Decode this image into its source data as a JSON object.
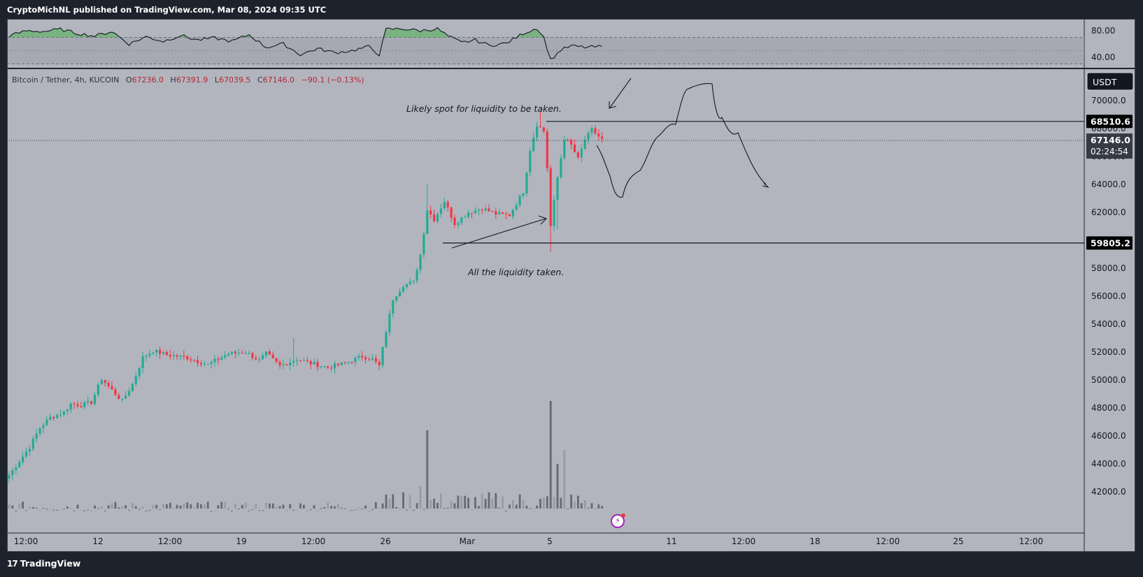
{
  "header": {
    "published_text": "CryptoMichNL published on TradingView.com, Mar 08, 2024 09:35 UTC"
  },
  "footer": {
    "logo_mark": "17",
    "logo_text": "TradingView"
  },
  "legend": {
    "pair": "Bitcoin / Tether, 4h, KUCOIN",
    "open_label": "O",
    "open": "67236.0",
    "high_label": "H",
    "high": "67391.9",
    "low_label": "L",
    "low": "67039.5",
    "close_label": "C",
    "close": "67146.0",
    "change": "−90.1 (−0.13%)"
  },
  "currency_button": "USDT",
  "annotations": {
    "top_text": "Likely spot for liquidity to be taken.",
    "bottom_text": "All the liquidity taken."
  },
  "price_tags": {
    "resistance": "68510.6",
    "support": "59805.2",
    "current": "67146.0",
    "countdown": "02:24:54"
  },
  "colors": {
    "background": "#b2b5be",
    "frame": "#1e222d",
    "up": "#22ab94",
    "down": "#f23645",
    "volume": "#787b86",
    "rsi_fill": "#4caf50"
  },
  "chart_data": {
    "type": "candlestick",
    "price_axis": {
      "ylim": [
        40400,
        72800
      ],
      "ticks": [
        "42000.0",
        "44000.0",
        "46000.0",
        "48000.0",
        "50000.0",
        "52000.0",
        "54000.0",
        "56000.0",
        "58000.0",
        "60000.0",
        "62000.0",
        "64000.0",
        "66000.0",
        "68000.0",
        "70000.0"
      ]
    },
    "x_axis": {
      "ticks": [
        "12:00",
        "12",
        "12:00",
        "19",
        "12:00",
        "26",
        "12:00",
        "Mar",
        "5",
        "11",
        "12:00",
        "18",
        "12:00",
        "25",
        "12:00"
      ]
    },
    "rsi_axis": {
      "ticks": [
        "80.00",
        "40.00"
      ],
      "band": [
        30,
        70
      ]
    },
    "horizontal_levels": [
      68510.6,
      59805.2
    ],
    "price_anchors": [
      [
        0,
        43200
      ],
      [
        3,
        44200
      ],
      [
        6,
        45200
      ],
      [
        9,
        46600
      ],
      [
        12,
        47300
      ],
      [
        16,
        47700
      ],
      [
        18,
        48300
      ],
      [
        21,
        48200
      ],
      [
        24,
        48400
      ],
      [
        27,
        50100
      ],
      [
        31,
        49000
      ],
      [
        33,
        48500
      ],
      [
        36,
        49700
      ],
      [
        39,
        51600
      ],
      [
        42,
        52100
      ],
      [
        46,
        51800
      ],
      [
        52,
        51600
      ],
      [
        58,
        51100
      ],
      [
        64,
        51900
      ],
      [
        69,
        52000
      ],
      [
        73,
        51400
      ],
      [
        75,
        51900
      ],
      [
        79,
        51000
      ],
      [
        84,
        51500
      ],
      [
        88,
        51200
      ],
      [
        93,
        50900
      ],
      [
        98,
        51200
      ],
      [
        103,
        51700
      ],
      [
        106,
        51500
      ],
      [
        108,
        51000
      ],
      [
        110,
        53500
      ],
      [
        112,
        55800
      ],
      [
        115,
        56800
      ],
      [
        118,
        57000
      ],
      [
        120,
        59000
      ],
      [
        122,
        62200
      ],
      [
        124,
        61500
      ],
      [
        127,
        62800
      ],
      [
        130,
        61200
      ],
      [
        134,
        62000
      ],
      [
        138,
        62300
      ],
      [
        142,
        61900
      ],
      [
        146,
        61800
      ],
      [
        150,
        63500
      ],
      [
        152,
        66500
      ],
      [
        154,
        68300
      ],
      [
        156,
        67800
      ],
      [
        157,
        65200
      ],
      [
        158,
        61000
      ],
      [
        160,
        64500
      ],
      [
        162,
        67300
      ],
      [
        164,
        66800
      ],
      [
        166,
        65800
      ],
      [
        168,
        67200
      ],
      [
        170,
        67900
      ],
      [
        173,
        67200
      ]
    ],
    "volume_spikes": [
      [
        122,
        46400
      ],
      [
        158,
        48500
      ],
      [
        160,
        44000
      ],
      [
        162,
        45000
      ],
      [
        120,
        42400
      ],
      [
        110,
        41800
      ]
    ],
    "rsi_anchors": [
      [
        0,
        72
      ],
      [
        5,
        80
      ],
      [
        10,
        79
      ],
      [
        15,
        82
      ],
      [
        20,
        76
      ],
      [
        25,
        72
      ],
      [
        30,
        79
      ],
      [
        35,
        60
      ],
      [
        40,
        71
      ],
      [
        45,
        64
      ],
      [
        50,
        73
      ],
      [
        55,
        66
      ],
      [
        60,
        69
      ],
      [
        65,
        64
      ],
      [
        70,
        74
      ],
      [
        75,
        55
      ],
      [
        80,
        60
      ],
      [
        85,
        44
      ],
      [
        90,
        53
      ],
      [
        95,
        47
      ],
      [
        100,
        50
      ],
      [
        105,
        56
      ],
      [
        108,
        44
      ],
      [
        110,
        82
      ],
      [
        115,
        83
      ],
      [
        120,
        80
      ],
      [
        125,
        83
      ],
      [
        128,
        72
      ],
      [
        132,
        62
      ],
      [
        136,
        66
      ],
      [
        140,
        58
      ],
      [
        145,
        61
      ],
      [
        150,
        76
      ],
      [
        154,
        84
      ],
      [
        156,
        70
      ],
      [
        158,
        36
      ],
      [
        161,
        51
      ],
      [
        164,
        57
      ],
      [
        168,
        55
      ],
      [
        173,
        56
      ]
    ]
  }
}
